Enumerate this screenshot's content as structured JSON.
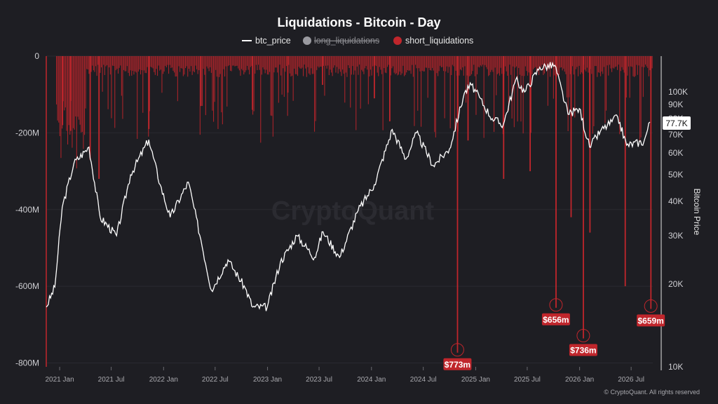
{
  "title": "Liquidations - Bitcoin - Day",
  "legend": [
    {
      "label": "btc_price",
      "state": "on",
      "color": "#ffffff"
    },
    {
      "label": "long_liquidations",
      "state": "off",
      "color": "#9a9aa0"
    },
    {
      "label": "short_liquidations",
      "state": "on",
      "color": "#c0262c"
    }
  ],
  "watermark": "CryptoQuant",
  "copyright": "© CryptoQuant. All rights reserved",
  "right_axis_title": "Bitcoin Price",
  "current_price_label": "77.7K",
  "colors": {
    "background": "#1e1e23",
    "short": "#c0262c",
    "price": "#ffffff",
    "callout": "#c0262c"
  },
  "chart_data": {
    "type": "bar",
    "left_axis": {
      "ticks": [
        "0",
        "-200M",
        "-400M",
        "-600M",
        "-800M"
      ],
      "values": [
        0,
        -200,
        -400,
        -600,
        -800
      ],
      "unit": "M",
      "ylim": [
        -810,
        0
      ]
    },
    "right_axis": {
      "scale": "log",
      "ticks": [
        "100K",
        "90K",
        "80K",
        "70K",
        "60K",
        "50K",
        "40K",
        "30K",
        "20K",
        "10K"
      ],
      "values": [
        100000,
        90000,
        80000,
        70000,
        60000,
        50000,
        40000,
        30000,
        20000,
        10000
      ]
    },
    "x_ticks": [
      "2021 Jan",
      "2021 Jul",
      "2022 Jan",
      "2022 Jul",
      "2023 Jan",
      "2023 Jul",
      "2024 Jan",
      "2024 Jul",
      "2025 Jan",
      "2025 Jul",
      "2026 Jan",
      "2026 Jul"
    ],
    "x_range": [
      "2020-11-15",
      "2026-09-15"
    ],
    "btc_price": [
      [
        "2020-11-15",
        16500
      ],
      [
        "2020-12-15",
        19500
      ],
      [
        "2021-01-10",
        38000
      ],
      [
        "2021-02-20",
        55000
      ],
      [
        "2021-04-14",
        63000
      ],
      [
        "2021-05-23",
        35000
      ],
      [
        "2021-07-20",
        30000
      ],
      [
        "2021-09-07",
        50000
      ],
      [
        "2021-11-10",
        67000
      ],
      [
        "2021-12-20",
        46000
      ],
      [
        "2022-01-24",
        35000
      ],
      [
        "2022-03-29",
        47000
      ],
      [
        "2022-05-12",
        29000
      ],
      [
        "2022-06-18",
        19000
      ],
      [
        "2022-08-15",
        24500
      ],
      [
        "2022-10-15",
        19300
      ],
      [
        "2022-11-10",
        16500
      ],
      [
        "2022-12-31",
        16500
      ],
      [
        "2023-02-15",
        24000
      ],
      [
        "2023-04-14",
        30000
      ],
      [
        "2023-06-15",
        25000
      ],
      [
        "2023-07-15",
        31000
      ],
      [
        "2023-09-11",
        25000
      ],
      [
        "2023-11-15",
        37000
      ],
      [
        "2024-01-11",
        46000
      ],
      [
        "2024-03-14",
        73000
      ],
      [
        "2024-05-01",
        57000
      ],
      [
        "2024-06-07",
        71000
      ],
      [
        "2024-08-05",
        54000
      ],
      [
        "2024-10-01",
        62000
      ],
      [
        "2024-11-22",
        99000
      ],
      [
        "2024-12-17",
        106000
      ],
      [
        "2025-02-28",
        80000
      ],
      [
        "2025-04-08",
        76000
      ],
      [
        "2025-05-22",
        111000
      ],
      [
        "2025-06-22",
        100000
      ],
      [
        "2025-08-14",
        123000
      ],
      [
        "2025-10-06",
        125000
      ],
      [
        "2025-11-21",
        83000
      ],
      [
        "2025-12-31",
        87000
      ],
      [
        "2026-02-05",
        63000
      ],
      [
        "2026-03-15",
        72000
      ],
      [
        "2026-05-15",
        81000
      ],
      [
        "2026-06-15",
        64000
      ],
      [
        "2026-08-15",
        66000
      ],
      [
        "2026-09-05",
        77700
      ]
    ],
    "short_liquidation_spikes": [
      [
        "2021-01-11",
        -180
      ],
      [
        "2021-02-08",
        -195
      ],
      [
        "2021-04-18",
        -270
      ],
      [
        "2021-05-19",
        -320
      ],
      [
        "2021-11-10",
        -190
      ],
      [
        "2022-05-12",
        -130
      ],
      [
        "2022-11-09",
        -140
      ],
      [
        "2023-03-13",
        -95
      ],
      [
        "2023-07-13",
        -75
      ],
      [
        "2024-01-11",
        -110
      ],
      [
        "2024-03-05",
        -170
      ],
      [
        "2024-10-29",
        -773
      ],
      [
        "2024-12-05",
        -220
      ],
      [
        "2025-04-09",
        -320
      ],
      [
        "2025-07-11",
        -300
      ],
      [
        "2025-10-10",
        -656
      ],
      [
        "2025-12-02",
        -420
      ],
      [
        "2026-01-14",
        -736
      ],
      [
        "2026-02-06",
        -460
      ],
      [
        "2026-06-10",
        -600
      ],
      [
        "2026-09-08",
        -659
      ]
    ],
    "annotations": [
      {
        "label": "$773m",
        "date": "2024-10-29",
        "value": -773
      },
      {
        "label": "$656m",
        "date": "2025-10-10",
        "value": -656
      },
      {
        "label": "$736m",
        "date": "2026-01-14",
        "value": -736
      },
      {
        "label": "$659m",
        "date": "2026-09-08",
        "value": -659
      }
    ]
  }
}
